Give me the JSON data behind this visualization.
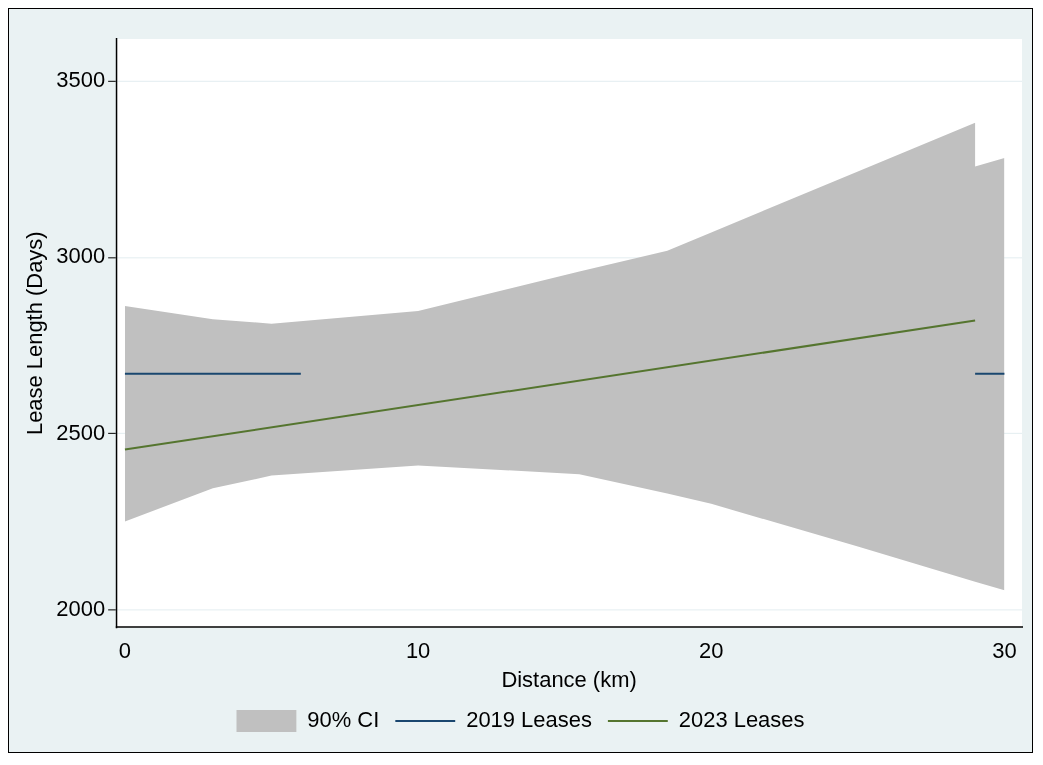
{
  "chart_data": {
    "type": "line",
    "xlabel": "Distance (km)",
    "ylabel": "Lease Length (Days)",
    "xlim": [
      -0.3,
      30.6
    ],
    "ylim": [
      1950,
      3620
    ],
    "xticks": [
      0,
      10,
      20,
      30
    ],
    "yticks": [
      2000,
      2500,
      3000,
      3500
    ],
    "grid": "y",
    "legend": "bottom",
    "marker": "none",
    "line_style": "solid",
    "series": [
      {
        "name": "90% CI",
        "type": "area",
        "color": "#c0c0c0",
        "x": [
          0,
          3,
          5,
          10,
          15.5,
          18.5,
          20,
          25,
          29,
          29,
          30
        ],
        "values": [
          null,
          null,
          null,
          null,
          null,
          null,
          null,
          null,
          null,
          null,
          null
        ],
        "lower": [
          2251,
          2345,
          2381,
          2410,
          2385,
          2330,
          2301,
          2180,
          2080,
          2080,
          2056
        ],
        "upper": [
          2862,
          2825,
          2812,
          2848,
          2960,
          3019,
          3071,
          3244,
          3382,
          3258,
          3282
        ]
      },
      {
        "name": "2019 Leases",
        "type": "line",
        "color": "#1a476f",
        "x": [
          0,
          6,
          17,
          29,
          30
        ],
        "values": [
          2670,
          2670,
          null,
          2670,
          2670
        ]
      },
      {
        "name": "2023 Leases",
        "type": "line",
        "color": "#55752f",
        "x": [
          0,
          29
        ],
        "values": [
          2455,
          2821
        ]
      }
    ]
  }
}
